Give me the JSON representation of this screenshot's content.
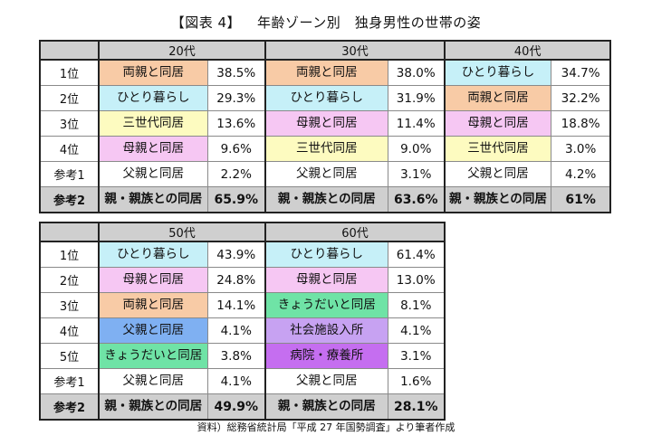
{
  "title": {
    "label": "【図表 4】",
    "text": "年齢ゾーン別　独身男性の世帯の姿"
  },
  "colors": {
    "orange": "#f8cba6",
    "cyan": "#c6f0f8",
    "yellow": "#fdfbc0",
    "pink": "#f6c7f3",
    "blue": "#7fb0f2",
    "green": "#6fe3a6",
    "violet": "#c7a2f2",
    "purple": "#c56ef0",
    "none": "#ffffff"
  },
  "table1": {
    "headers": [
      "20代",
      "30代",
      "40代"
    ],
    "rows": [
      {
        "rank": "1位",
        "cells": [
          {
            "label": "両親と同居",
            "pct": "38.5%",
            "color": "orange"
          },
          {
            "label": "両親と同居",
            "pct": "38.0%",
            "color": "orange"
          },
          {
            "label": "ひとり暮らし",
            "pct": "34.7%",
            "color": "cyan"
          }
        ]
      },
      {
        "rank": "2位",
        "cells": [
          {
            "label": "ひとり暮らし",
            "pct": "29.3%",
            "color": "cyan"
          },
          {
            "label": "ひとり暮らし",
            "pct": "31.9%",
            "color": "cyan"
          },
          {
            "label": "両親と同居",
            "pct": "32.2%",
            "color": "orange"
          }
        ]
      },
      {
        "rank": "3位",
        "cells": [
          {
            "label": "三世代同居",
            "pct": "13.6%",
            "color": "yellow"
          },
          {
            "label": "母親と同居",
            "pct": "11.4%",
            "color": "pink"
          },
          {
            "label": "母親と同居",
            "pct": "18.8%",
            "color": "pink"
          }
        ]
      },
      {
        "rank": "4位",
        "cells": [
          {
            "label": "母親と同居",
            "pct": "9.6%",
            "color": "pink"
          },
          {
            "label": "三世代同居",
            "pct": "9.0%",
            "color": "yellow"
          },
          {
            "label": "三世代同居",
            "pct": "3.0%",
            "color": "yellow"
          }
        ]
      },
      {
        "rank": "参考1",
        "cells": [
          {
            "label": "父親と同居",
            "pct": "2.2%",
            "color": "none"
          },
          {
            "label": "父親と同居",
            "pct": "3.1%",
            "color": "none"
          },
          {
            "label": "父親と同居",
            "pct": "4.2%",
            "color": "none"
          }
        ]
      },
      {
        "rank": "参考2",
        "gray": true,
        "cells": [
          {
            "label": "親・親族との同居",
            "pct": "65.9%",
            "color": "none"
          },
          {
            "label": "親・親族との同居",
            "pct": "63.6%",
            "color": "none"
          },
          {
            "label": "親・親族との同居",
            "pct": "61%",
            "color": "none"
          }
        ]
      }
    ]
  },
  "table2": {
    "headers": [
      "50代",
      "60代"
    ],
    "rows": [
      {
        "rank": "1位",
        "cells": [
          {
            "label": "ひとり暮らし",
            "pct": "43.9%",
            "color": "cyan"
          },
          {
            "label": "ひとり暮らし",
            "pct": "61.4%",
            "color": "cyan"
          }
        ]
      },
      {
        "rank": "2位",
        "cells": [
          {
            "label": "母親と同居",
            "pct": "24.8%",
            "color": "pink"
          },
          {
            "label": "母親と同居",
            "pct": "13.0%",
            "color": "pink"
          }
        ]
      },
      {
        "rank": "3位",
        "cells": [
          {
            "label": "両親と同居",
            "pct": "14.1%",
            "color": "orange"
          },
          {
            "label": "きょうだいと同居",
            "pct": "8.1%",
            "color": "green"
          }
        ]
      },
      {
        "rank": "4位",
        "cells": [
          {
            "label": "父親と同居",
            "pct": "4.1%",
            "color": "blue"
          },
          {
            "label": "社会施設入所",
            "pct": "4.1%",
            "color": "violet"
          }
        ]
      },
      {
        "rank": "5位",
        "cells": [
          {
            "label": "きょうだいと同居",
            "pct": "3.8%",
            "color": "green"
          },
          {
            "label": "病院・療養所",
            "pct": "3.1%",
            "color": "purple"
          }
        ]
      },
      {
        "rank": "参考1",
        "cells": [
          {
            "label": "父親と同居",
            "pct": "4.1%",
            "color": "none"
          },
          {
            "label": "父親と同居",
            "pct": "1.6%",
            "color": "none"
          }
        ]
      },
      {
        "rank": "参考2",
        "gray": true,
        "cells": [
          {
            "label": "親・親族との同居",
            "pct": "49.9%",
            "color": "none"
          },
          {
            "label": "親・親族との同居",
            "pct": "28.1%",
            "color": "none"
          }
        ]
      }
    ]
  },
  "footnote": "資料）総務省統計局「平成 27 年国勢調査」より筆者作成"
}
